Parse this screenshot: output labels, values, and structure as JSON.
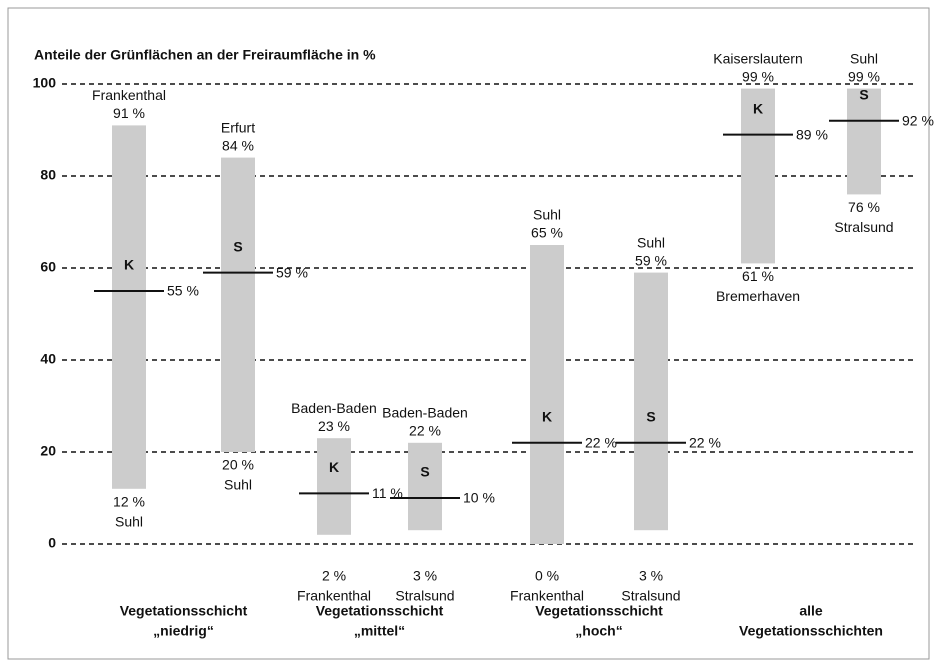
{
  "chart_data": {
    "type": "range",
    "title": "Anteile der Grünflächen an der Freiraumfläche in %",
    "ylim": [
      0,
      100
    ],
    "yticks": [
      0,
      20,
      40,
      60,
      80,
      100
    ],
    "grid": true,
    "color": "#cccccc",
    "groups": [
      {
        "lines": [
          "Vegetationsschicht",
          "„niedrig“"
        ],
        "bars": [
          {
            "marker": "K",
            "high": 91,
            "high_label": "91 %",
            "high_city": "Frankenthal",
            "low": 12,
            "low_label": "12 %",
            "low_city": "Suhl",
            "median": 55,
            "median_label": "55 %"
          },
          {
            "marker": "S",
            "high": 84,
            "high_label": "84 %",
            "high_city": "Erfurt",
            "low": 20,
            "low_label": "20 %",
            "low_city": "Suhl",
            "median": 59,
            "median_label": "59 %"
          }
        ]
      },
      {
        "lines": [
          "Vegetationsschicht",
          "„mittel“"
        ],
        "bars": [
          {
            "marker": "K",
            "high": 23,
            "high_label": "23 %",
            "high_city": "Baden-Baden",
            "low": 2,
            "low_label": "2 %",
            "low_city": "Frankenthal",
            "median": 11,
            "median_label": "11 %"
          },
          {
            "marker": "S",
            "high": 22,
            "high_label": "22 %",
            "high_city": "Baden-Baden",
            "low": 3,
            "low_label": "3 %",
            "low_city": "Stralsund",
            "median": 10,
            "median_label": "10 %"
          }
        ]
      },
      {
        "lines": [
          "Vegetationsschicht",
          "„hoch“"
        ],
        "bars": [
          {
            "marker": "K",
            "high": 65,
            "high_label": "65 %",
            "high_city": "Suhl",
            "low": 0,
            "low_label": "0 %",
            "low_city": "Frankenthal",
            "median": 22,
            "median_label": "22 %"
          },
          {
            "marker": "S",
            "high": 59,
            "high_label": "59 %",
            "high_city": "Suhl",
            "low": 3,
            "low_label": "3 %",
            "low_city": "Stralsund",
            "median": 22,
            "median_label": "22 %"
          }
        ]
      },
      {
        "lines": [
          "alle",
          "Vegetationsschichten"
        ],
        "bars": [
          {
            "marker": "K",
            "high": 99,
            "high_label": "99 %",
            "high_city": "Kaiserslautern",
            "low": 61,
            "low_label": "61 %",
            "low_city": "Bremerhaven",
            "median": 89,
            "median_label": "89 %"
          },
          {
            "marker": "S",
            "high": 99,
            "high_label": "99 %",
            "high_city": "Suhl",
            "low": 76,
            "low_label": "76 %",
            "low_city": "Stralsund",
            "median": 92,
            "median_label": "92 %"
          }
        ]
      }
    ]
  }
}
